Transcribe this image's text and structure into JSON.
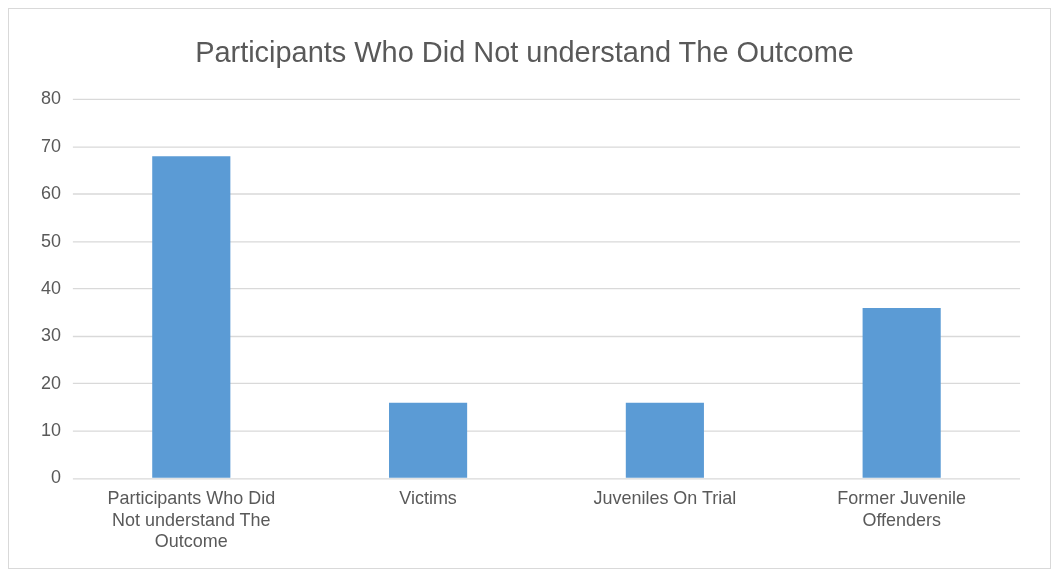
{
  "chart_data": {
    "type": "bar",
    "title": "Participants Who Did Not understand The Outcome",
    "categories": [
      "Participants Who Did Not understand The Outcome",
      "Victims",
      "Juveniles On Trial",
      "Former Juvenile Offenders"
    ],
    "values": [
      68,
      16,
      16,
      36
    ],
    "color": "#5b9bd5",
    "ylim": [
      0,
      80
    ],
    "yticks": [
      0,
      10,
      20,
      30,
      40,
      50,
      60,
      70,
      80
    ],
    "grid": "y",
    "legend": false
  }
}
